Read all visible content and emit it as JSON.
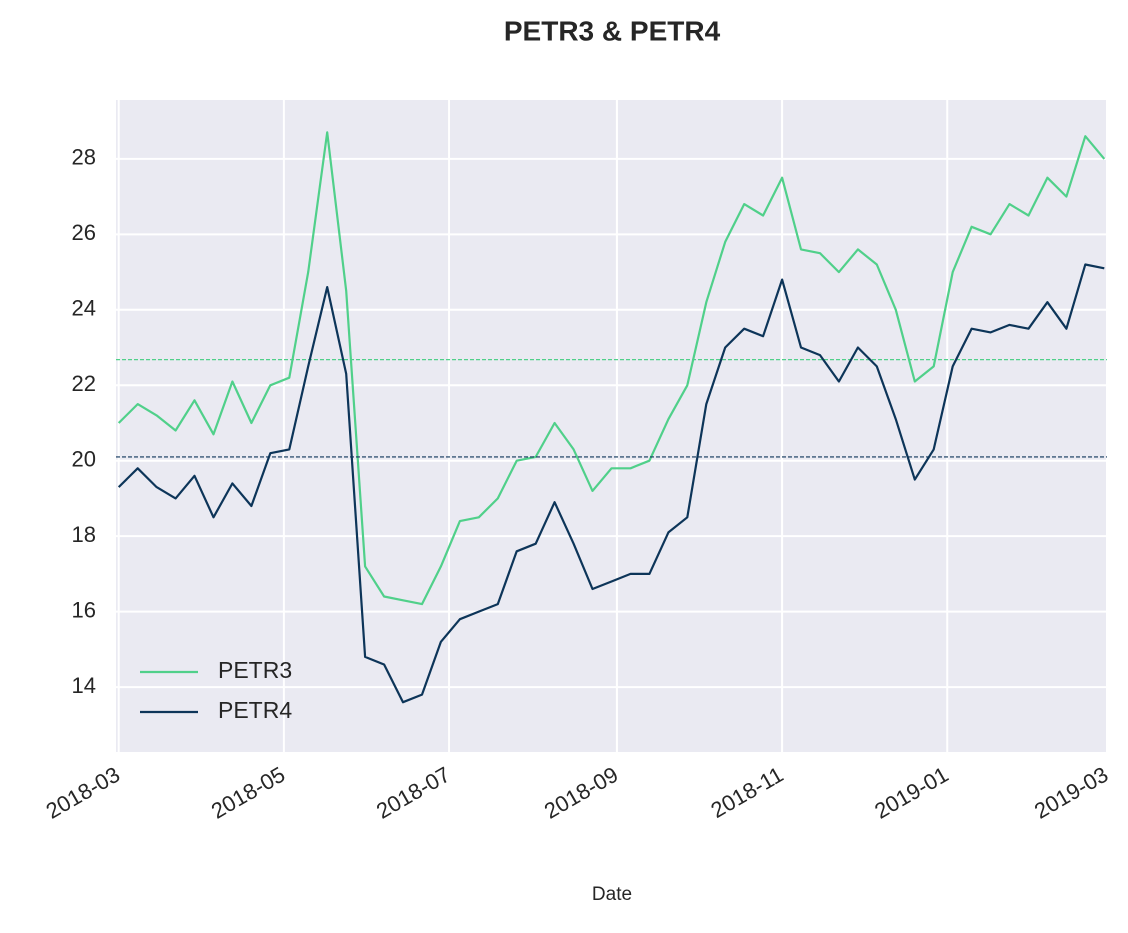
{
  "chart_data": {
    "type": "line",
    "title": "PETR3 & PETR4",
    "xlabel": "Date",
    "x": [
      "2018-03-01",
      "2018-03-08",
      "2018-03-15",
      "2018-03-22",
      "2018-03-29",
      "2018-04-05",
      "2018-04-12",
      "2018-04-19",
      "2018-04-26",
      "2018-05-03",
      "2018-05-10",
      "2018-05-17",
      "2018-05-24",
      "2018-05-31",
      "2018-06-07",
      "2018-06-14",
      "2018-06-21",
      "2018-06-28",
      "2018-07-05",
      "2018-07-12",
      "2018-07-19",
      "2018-07-26",
      "2018-08-02",
      "2018-08-09",
      "2018-08-16",
      "2018-08-23",
      "2018-08-30",
      "2018-09-06",
      "2018-09-13",
      "2018-09-20",
      "2018-09-27",
      "2018-10-04",
      "2018-10-11",
      "2018-10-18",
      "2018-10-25",
      "2018-11-01",
      "2018-11-08",
      "2018-11-15",
      "2018-11-22",
      "2018-11-29",
      "2018-12-06",
      "2018-12-13",
      "2018-12-20",
      "2018-12-27",
      "2019-01-03",
      "2019-01-10",
      "2019-01-17",
      "2019-01-24",
      "2019-01-31",
      "2019-02-07",
      "2019-02-14",
      "2019-02-21",
      "2019-02-28"
    ],
    "series": [
      {
        "name": "PETR3",
        "color": "#50d08a",
        "mean": 22.68,
        "values": [
          21.0,
          21.5,
          21.2,
          20.8,
          21.6,
          20.7,
          22.1,
          21.0,
          22.0,
          22.2,
          25.0,
          28.7,
          24.5,
          17.2,
          16.4,
          16.3,
          16.2,
          17.2,
          18.4,
          18.5,
          19.0,
          20.0,
          20.1,
          21.0,
          20.3,
          19.2,
          19.8,
          19.8,
          20.0,
          21.1,
          22.0,
          24.2,
          25.8,
          26.8,
          26.5,
          27.5,
          25.6,
          25.5,
          25.0,
          25.6,
          25.2,
          24.0,
          22.1,
          22.5,
          25.0,
          26.2,
          26.0,
          26.8,
          26.5,
          27.5,
          27.0,
          28.6,
          28.0
        ]
      },
      {
        "name": "PETR4",
        "color": "#0d3559",
        "mean": 20.1,
        "values": [
          19.3,
          19.8,
          19.3,
          19.0,
          19.6,
          18.5,
          19.4,
          18.8,
          20.2,
          20.3,
          22.5,
          24.6,
          22.3,
          14.8,
          14.6,
          13.6,
          13.8,
          15.2,
          15.8,
          16.0,
          16.2,
          17.6,
          17.8,
          18.9,
          17.8,
          16.6,
          16.8,
          17.0,
          17.0,
          18.1,
          18.5,
          21.5,
          23.0,
          23.5,
          23.3,
          24.8,
          23.0,
          22.8,
          22.1,
          23.0,
          22.5,
          21.1,
          19.5,
          20.3,
          22.5,
          23.5,
          23.4,
          23.6,
          23.5,
          24.2,
          23.5,
          25.2,
          25.1
        ]
      }
    ],
    "xlim": [
      "2018-02-28",
      "2019-03-01"
    ],
    "xticks": [
      "2018-03",
      "2018-05",
      "2018-07",
      "2018-09",
      "2018-11",
      "2019-01",
      "2019-03"
    ],
    "ylim": [
      12.28,
      29.56
    ],
    "yticks": [
      14,
      16,
      18,
      20,
      22,
      24,
      26,
      28
    ],
    "grid": true,
    "legend": "lower left"
  }
}
